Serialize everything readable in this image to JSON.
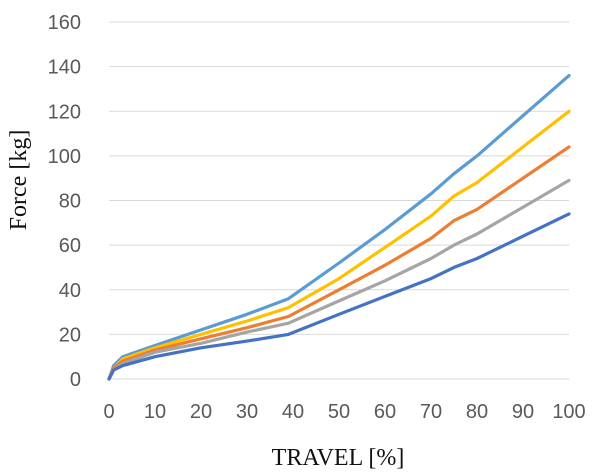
{
  "chart_data": {
    "type": "line",
    "title": "",
    "xlabel": "TRAVEL [%]",
    "ylabel": "Force [kg]",
    "xlim": [
      0,
      100
    ],
    "ylim": [
      0,
      160
    ],
    "xticks": [
      0,
      10,
      20,
      30,
      40,
      50,
      60,
      70,
      80,
      90,
      100
    ],
    "yticks": [
      0,
      20,
      40,
      60,
      80,
      100,
      120,
      140,
      160
    ],
    "grid": true,
    "legend": "none",
    "series": [
      {
        "color": "#5B9BD5",
        "x": [
          0,
          1,
          3,
          10,
          20,
          30,
          39,
          50,
          60,
          70,
          75,
          80,
          90,
          100
        ],
        "y": [
          0,
          6,
          10,
          15,
          22,
          29,
          36,
          52,
          67,
          83,
          92,
          100,
          118,
          136
        ]
      },
      {
        "color": "#FFC000",
        "x": [
          0,
          1,
          3,
          10,
          20,
          30,
          39,
          50,
          60,
          70,
          75,
          80,
          90,
          100
        ],
        "y": [
          0,
          5,
          9,
          14,
          20,
          26,
          32,
          45,
          59,
          73,
          82,
          88,
          104,
          120
        ]
      },
      {
        "color": "#ED7D31",
        "x": [
          0,
          1,
          3,
          10,
          20,
          30,
          39,
          50,
          60,
          70,
          75,
          80,
          90,
          100
        ],
        "y": [
          0,
          5,
          8,
          13,
          18,
          23,
          28,
          40,
          51,
          63,
          71,
          76,
          90,
          104
        ]
      },
      {
        "color": "#A5A5A5",
        "x": [
          0,
          1,
          3,
          10,
          20,
          30,
          39,
          50,
          60,
          70,
          75,
          80,
          90,
          100
        ],
        "y": [
          0,
          4,
          7,
          12,
          16,
          21,
          25,
          35,
          44,
          54,
          60,
          65,
          77,
          89
        ]
      },
      {
        "color": "#4472C4",
        "x": [
          0,
          1,
          3,
          10,
          20,
          30,
          39,
          50,
          60,
          70,
          75,
          80,
          90,
          100
        ],
        "y": [
          0,
          4,
          6,
          10,
          14,
          17,
          20,
          29,
          37,
          45,
          50,
          54,
          64,
          74
        ]
      }
    ]
  }
}
